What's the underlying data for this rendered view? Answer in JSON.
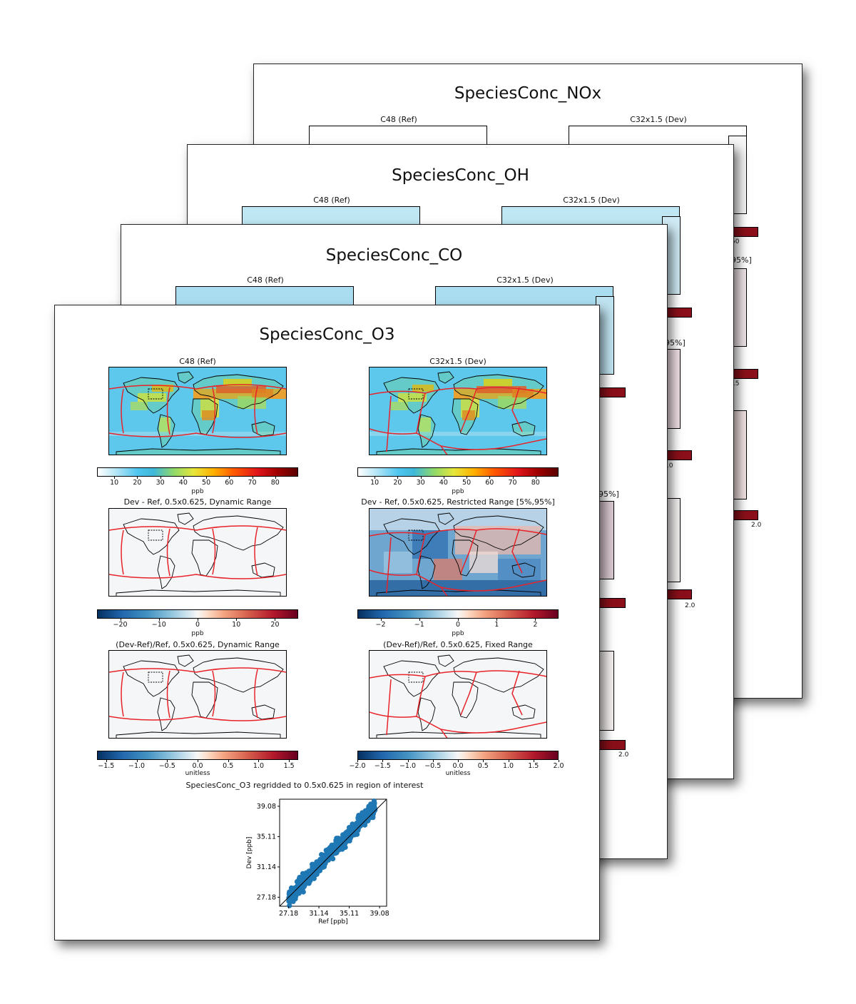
{
  "pages": [
    {
      "title": "SpeciesConc_NOx",
      "ref_label": "C48 (Ref)",
      "dev_label": "C32x1.5 (Dev)"
    },
    {
      "title": "SpeciesConc_OH",
      "ref_label": "C48 (Ref)",
      "dev_label": "C32x1.5 (Dev)"
    },
    {
      "title": "SpeciesConc_CO",
      "ref_label": "C48 (Ref)",
      "dev_label": "C32x1.5 (Dev)"
    }
  ],
  "peek_labels": {
    "nox": [
      "50",
      "95%]",
      "15",
      "5",
      "2.0"
    ],
    "oh": [
      "95%]",
      "10",
      "5",
      "2.0"
    ],
    "co": [
      "95%]",
      "5",
      "2.0"
    ]
  },
  "front": {
    "title": "SpeciesConc_O3",
    "ref_label": "C48 (Ref)",
    "dev_label": "C32x1.5 (Dev)",
    "conc_ticks": [
      "10",
      "20",
      "30",
      "40",
      "50",
      "60",
      "70",
      "80"
    ],
    "conc_unit": "ppb",
    "diff_dyn_title": "Dev - Ref, 0.5x0.625, Dynamic Range",
    "diff_res_title": "Dev - Ref, 0.5x0.625, Restricted Range [5%,95%]",
    "diff_dyn_ticks": [
      "−20",
      "−10",
      "0",
      "10",
      "20"
    ],
    "diff_res_ticks": [
      "−2",
      "−1",
      "0",
      "1",
      "2"
    ],
    "diff_unit": "ppb",
    "frac_dyn_title": "(Dev-Ref)/Ref, 0.5x0.625, Dynamic Range",
    "frac_fix_title": "(Dev-Ref)/Ref, 0.5x0.625, Fixed Range",
    "frac_dyn_ticks": [
      "−1.5",
      "−1.0",
      "−0.5",
      "0.0",
      "0.5",
      "1.0",
      "1.5"
    ],
    "frac_fix_ticks": [
      "−2.0",
      "−1.5",
      "−1.0",
      "−0.5",
      "0.0",
      "0.5",
      "1.0",
      "1.5",
      "2.0"
    ],
    "frac_unit": "unitless",
    "scatter_title": "SpeciesConc_O3 regridded to 0.5x0.625 in region of interest"
  },
  "colors": {
    "map_ocean": "#5ec8ec",
    "map_land": "#8fd96a",
    "cubed_sphere_edges": "#e8232a",
    "scatter_points": "#1f77b4"
  },
  "chart_data": {
    "type": "scatter",
    "title": "SpeciesConc_O3 regridded to 0.5x0.625 in region of interest",
    "xlabel": "Ref [ppb]",
    "ylabel": "Dev [ppb]",
    "xticks": [
      "27.18",
      "31.14",
      "35.11",
      "39.08"
    ],
    "yticks": [
      "27.18",
      "31.14",
      "35.11",
      "39.08"
    ],
    "xlim": [
      26.0,
      40.0
    ],
    "ylim": [
      26.0,
      40.0
    ],
    "one_to_one_line": true,
    "trend": {
      "x_start": 27.2,
      "x_end": 38.5,
      "slope": 1.05,
      "spread": 0.7
    }
  }
}
